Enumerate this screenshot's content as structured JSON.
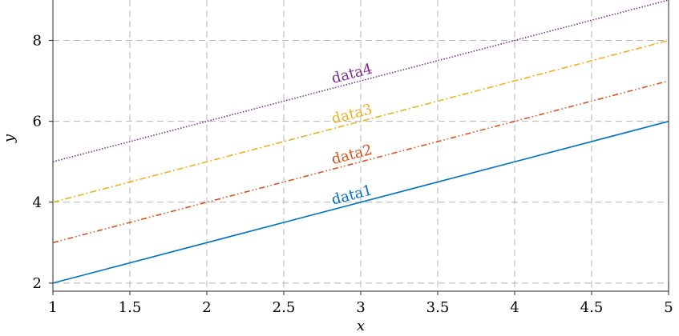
{
  "chart_data": {
    "type": "line",
    "xlabel": "x",
    "ylabel": "y",
    "xlim": [
      1,
      5
    ],
    "ylim": [
      1.8,
      9
    ],
    "x_ticks": [
      1,
      1.5,
      2,
      2.5,
      3,
      3.5,
      4,
      4.5,
      5
    ],
    "x_tick_labels": [
      "1",
      "1.5",
      "2",
      "2.5",
      "3",
      "3.5",
      "4",
      "4.5",
      "5"
    ],
    "y_ticks": [
      2,
      4,
      6,
      8
    ],
    "y_tick_labels": [
      "2",
      "4",
      "6",
      "8"
    ],
    "grid": true,
    "series": [
      {
        "name": "data1",
        "x": [
          1,
          5
        ],
        "y": [
          2,
          6
        ],
        "color": "#0072bd",
        "style": "solid"
      },
      {
        "name": "data2",
        "x": [
          1,
          5
        ],
        "y": [
          3,
          7
        ],
        "color": "#d95319",
        "style": "dashdotdot"
      },
      {
        "name": "data3",
        "x": [
          1,
          5
        ],
        "y": [
          4,
          8
        ],
        "color": "#edb120",
        "style": "dashdot"
      },
      {
        "name": "data4",
        "x": [
          1,
          5
        ],
        "y": [
          5,
          9
        ],
        "color": "#7e2f8e",
        "style": "dotted"
      }
    ]
  }
}
